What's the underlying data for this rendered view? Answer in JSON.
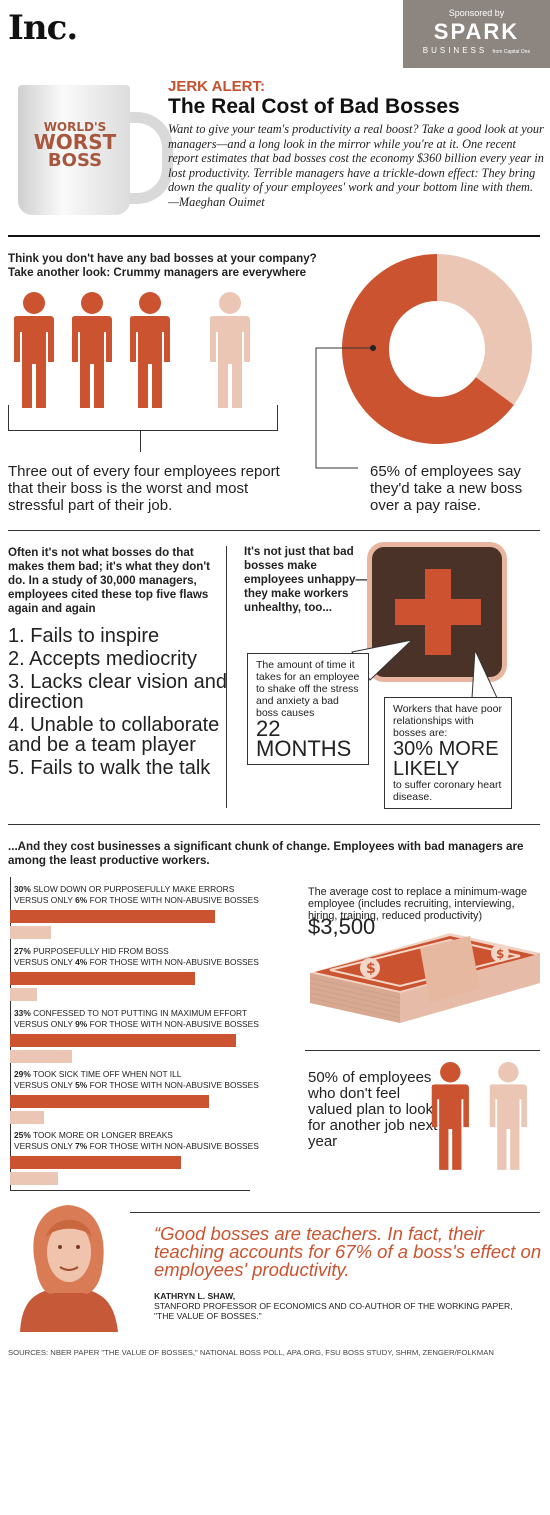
{
  "header": {
    "logo": "Inc.",
    "sponsor_label": "Sponsored by",
    "sponsor_name": "SPARK",
    "sponsor_sub": "BUSINESS",
    "sponsor_tiny": "from Capital One",
    "mug_line1": "WORLD'S",
    "mug_line2": "WORST",
    "mug_line3": "BOSS",
    "kicker": "JERK ALERT:",
    "title": "The Real Cost of Bad Bosses",
    "intro": "Want to give your team's productivity a real boost? Take a good look at your managers—and a long look in the mirror while you're at it. One recent report estimates that bad bosses cost the economy $360 billion every year in lost productivity. Terrible managers have a trickle-down effect: They bring down the quality of your employees' work and your bottom line with them. —Maeghan Ouimet"
  },
  "section1": {
    "heading": "Think you don't have any bad bosses at your company? Take another look: Crummy managers are everywhere",
    "stat_left": "Three out of every four employees report that their boss is the  worst and most stressful part of their job.",
    "stat_right": "65% of employees say they'd take a new boss over a pay raise."
  },
  "section2": {
    "heading": "Often it's not what bosses do that makes them bad; it's what they don't do. In a study of 30,000 managers, employees cited these top five flaws again and again",
    "flaws": [
      "1. Fails to inspire",
      "2. Accepts mediocrity",
      "3. Lacks clear vision and direction",
      "4. Unable to collaborate and be a team player",
      "5. Fails to walk the talk"
    ],
    "health_heading": "It's not just that bad bosses make employees unhappy—they make workers unhealthy, too...",
    "callout1_text": "The amount of time it takes for an employee to shake off the stress and anxiety a bad boss causes",
    "callout1_value": "22 MONTHS",
    "callout2_text": "Workers that have poor relationships with bosses are:",
    "callout2_value": "30% MORE LIKELY",
    "callout2_tail": "to suffer coronary heart disease."
  },
  "section3": {
    "heading": "...And they cost businesses a significant chunk of change. Employees with bad managers are among the least productive workers.",
    "bars": [
      {
        "pct": "30%",
        "label": "SLOW DOWN OR PURPOSEFULLY MAKE ERRORS",
        "vs": "VERSUS ONLY",
        "non_pct": "6%",
        "tail": "FOR THOSE WITH NON-ABUSIVE BOSSES"
      },
      {
        "pct": "27%",
        "label": "PURPOSEFULLY HID FROM BOSS",
        "vs": "VERSUS ONLY",
        "non_pct": "4%",
        "tail": "FOR THOSE WITH NON-ABUSIVE BOSSES"
      },
      {
        "pct": "33%",
        "label": "CONFESSED TO NOT PUTTING IN MAXIMUM EFFORT",
        "vs": "VERSUS ONLY",
        "non_pct": "9%",
        "tail": "FOR THOSE WITH NON-ABUSIVE BOSSES"
      },
      {
        "pct": "29%",
        "label": "TOOK SICK TIME OFF WHEN NOT ILL",
        "vs": "VERSUS ONLY",
        "non_pct": "5%",
        "tail": "FOR THOSE WITH NON-ABUSIVE BOSSES"
      },
      {
        "pct": "25%",
        "label": "TOOK MORE OR LONGER BREAKS",
        "vs": "VERSUS ONLY",
        "non_pct": "7%",
        "tail": "FOR THOSE WITH NON-ABUSIVE BOSSES"
      }
    ],
    "cost_text": "The average cost to replace a minimum-wage employee (includes recruiting, interviewing, hiring, training, reduced productivity)",
    "cost_value": "$3,500",
    "valued_text": "50% of employees who don't feel valued plan to look for another job next year"
  },
  "quote": {
    "text": "“Good bosses are teachers. In fact, their teaching accounts for 67% of a boss's effect on employees' productivity.",
    "name": "KATHRYN L. SHAW,",
    "role": "STANFORD PROFESSOR OF ECONOMICS AND CO-AUTHOR OF THE WORKING PAPER, \"THE VALUE OF BOSSES.\""
  },
  "sources": "SOURCES: NBER PAPER \"THE VALUE OF BOSSES,\" NATIONAL BOSS POLL, APA.ORG, FSU BOSS STUDY, SHRM, ZENGER/FOLKMAN",
  "colors": {
    "accent": "#cb5330",
    "light": "#ebc6b4",
    "dark": "#4a3228"
  },
  "chart_data": [
    {
      "type": "pie",
      "categories": [
        "would take new boss over pay raise",
        "other"
      ],
      "values": [
        65,
        35
      ]
    },
    {
      "type": "bar",
      "categories": [
        "1 of 4",
        "2 of 4",
        "3 of 4",
        "4 of 4"
      ],
      "values": [
        1,
        1,
        1,
        0
      ]
    },
    {
      "type": "bar",
      "orientation": "horizontal",
      "categories": [
        "SLOW DOWN OR PURPOSEFULLY MAKE ERRORS",
        "PURPOSEFULLY HID FROM BOSS",
        "CONFESSED TO NOT PUTTING IN MAXIMUM EFFORT",
        "TOOK SICK TIME OFF WHEN NOT ILL",
        "TOOK MORE OR LONGER BREAKS"
      ],
      "series": [
        {
          "values": [
            30,
            27,
            33,
            29,
            25
          ]
        },
        {
          "values": [
            6,
            4,
            9,
            5,
            7
          ]
        }
      ],
      "ylim": [
        0,
        33
      ]
    },
    {
      "type": "bar",
      "categories": [
        "person 1",
        "person 2"
      ],
      "values": [
        1,
        0
      ]
    }
  ]
}
